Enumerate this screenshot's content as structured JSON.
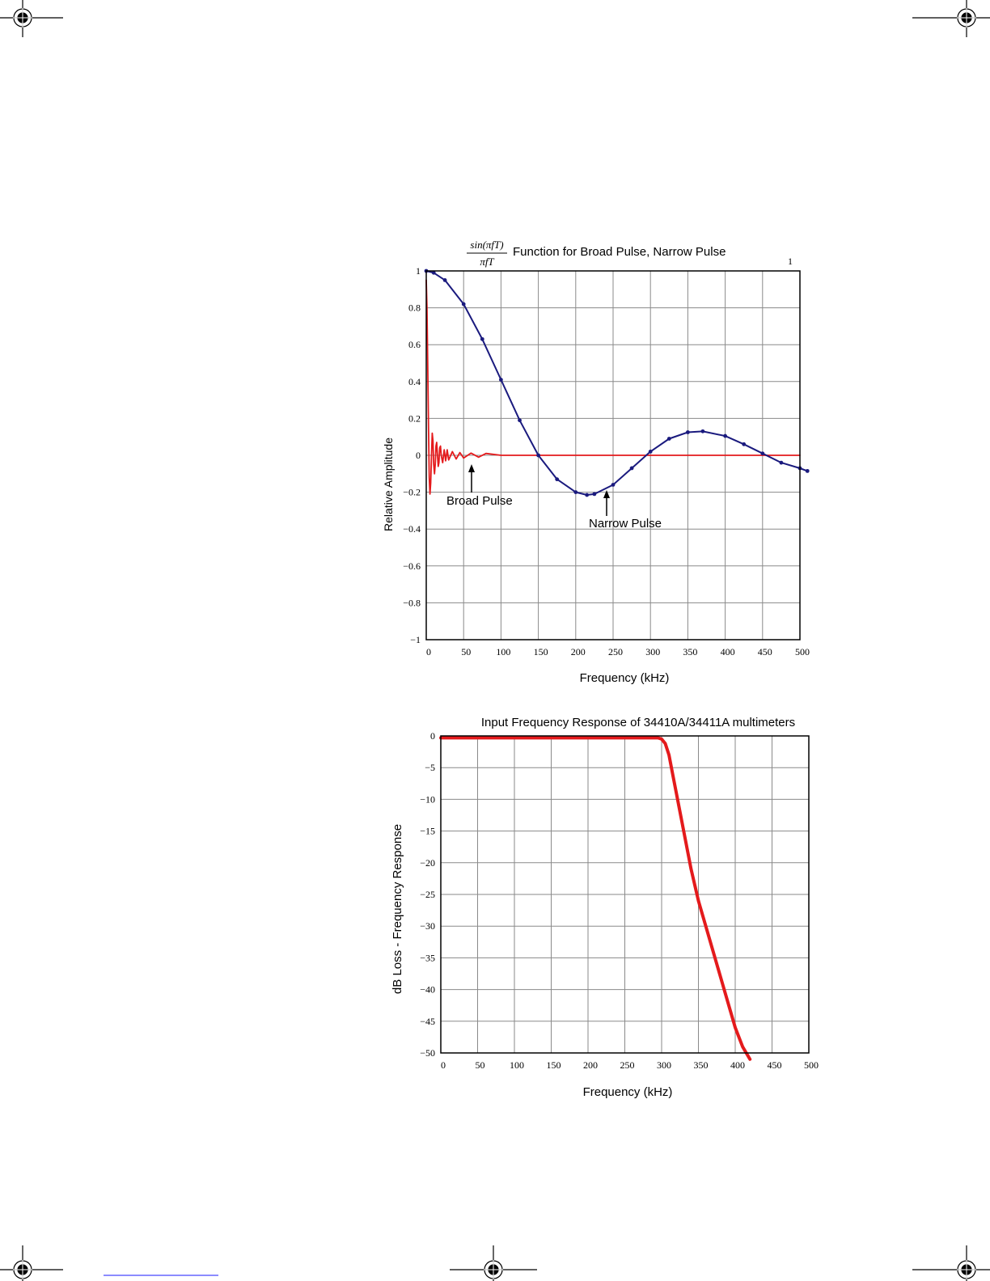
{
  "page": {
    "colors": {
      "background": "#ffffff",
      "grid": "#8a8a8a",
      "frame": "#000000"
    },
    "crop_marks": [
      "registration-mark-top-left",
      "registration-mark-top-right",
      "registration-mark-bottom-left",
      "registration-mark-bottom-center",
      "registration-mark-bottom-right"
    ],
    "stray_mark": "1"
  },
  "chart_data": [
    {
      "type": "line",
      "title_formula": {
        "numerator": "sin(πfT)",
        "denominator": "πfT"
      },
      "title": "Function for Broad Pulse, Narrow Pulse",
      "xlabel": "Frequency (kHz)",
      "ylabel": "Relative Amplitude",
      "xlim": [
        0,
        500
      ],
      "ylim": [
        -1,
        1
      ],
      "grid": true,
      "x_ticks": [
        0,
        50,
        100,
        150,
        200,
        250,
        300,
        350,
        400,
        450,
        500
      ],
      "y_ticks": [
        1,
        0.8,
        0.6,
        0.4,
        0.2,
        0,
        -0.2,
        -0.4,
        -0.6,
        -0.8,
        -1
      ],
      "y_tick_labels": [
        "1",
        "0.8",
        "0.6",
        "0.4",
        "0.2",
        "0",
        "−0.2",
        "−0.4",
        "−0.6",
        "−0.8",
        "−1"
      ],
      "annotations": [
        {
          "text": "Broad Pulse",
          "x": 60,
          "y": -0.07
        },
        {
          "text": "Narrow Pulse",
          "x": 240,
          "y": -0.2
        }
      ],
      "series": [
        {
          "color": "#e41a1c",
          "style": "line",
          "x": [
            0,
            1,
            2,
            3,
            4,
            5,
            6,
            7,
            8,
            9,
            10,
            11,
            12,
            13,
            14,
            15,
            16,
            17,
            18,
            19,
            20,
            22,
            24,
            26,
            28,
            30,
            35,
            40,
            45,
            50,
            60,
            70,
            80,
            100,
            150,
            200,
            250,
            300,
            350,
            400,
            450,
            500
          ],
          "y": [
            0.95,
            0.8,
            0.5,
            0.15,
            -0.12,
            -0.21,
            -0.15,
            0.0,
            0.12,
            0.08,
            -0.05,
            -0.1,
            -0.05,
            0.05,
            0.07,
            0.0,
            -0.06,
            -0.04,
            0.04,
            0.05,
            0.0,
            -0.04,
            0.03,
            -0.03,
            0.03,
            -0.025,
            0.02,
            -0.02,
            0.015,
            -0.015,
            0.012,
            -0.01,
            0.01,
            0.0,
            0.0,
            0.0,
            0.0,
            0.0,
            0.0,
            0.0,
            0.0,
            0.0
          ]
        },
        {
          "color": "#1a1a7e",
          "style": "dotted-line",
          "x": [
            0,
            10,
            25,
            50,
            75,
            100,
            125,
            150,
            175,
            200,
            215,
            225,
            250,
            275,
            300,
            325,
            350,
            370,
            400,
            425,
            450,
            475,
            500,
            510
          ],
          "y": [
            1.0,
            0.99,
            0.95,
            0.82,
            0.63,
            0.41,
            0.19,
            0.0,
            -0.13,
            -0.2,
            -0.215,
            -0.21,
            -0.16,
            -0.07,
            0.02,
            0.09,
            0.125,
            0.13,
            0.105,
            0.06,
            0.01,
            -0.04,
            -0.07,
            -0.085
          ]
        }
      ]
    },
    {
      "type": "line",
      "title": "Input Frequency Response of 34410A/34411A multimeters",
      "xlabel": "Frequency (kHz)",
      "ylabel": "dB Loss - Frequency Response",
      "xlim": [
        0,
        500
      ],
      "ylim": [
        -50,
        0
      ],
      "grid": true,
      "x_ticks": [
        0,
        50,
        100,
        150,
        200,
        250,
        300,
        350,
        400,
        450,
        500
      ],
      "y_ticks": [
        0,
        -5,
        -10,
        -15,
        -20,
        -25,
        -30,
        -35,
        -40,
        -45,
        -50
      ],
      "y_tick_labels": [
        "0",
        "−5",
        "−10",
        "−15",
        "−20",
        "−25",
        "−30",
        "−35",
        "−40",
        "−45",
        "−50"
      ],
      "series": [
        {
          "color": "#e41a1c",
          "style": "thick-line",
          "x": [
            0,
            100,
            200,
            295,
            300,
            305,
            310,
            315,
            320,
            330,
            340,
            350,
            360,
            370,
            380,
            390,
            400,
            410,
            420
          ],
          "y": [
            -0.3,
            -0.3,
            -0.3,
            -0.3,
            -0.5,
            -1.2,
            -3,
            -6,
            -9,
            -15,
            -21,
            -26,
            -30,
            -34,
            -38,
            -42,
            -46,
            -49,
            -51
          ]
        }
      ]
    }
  ]
}
